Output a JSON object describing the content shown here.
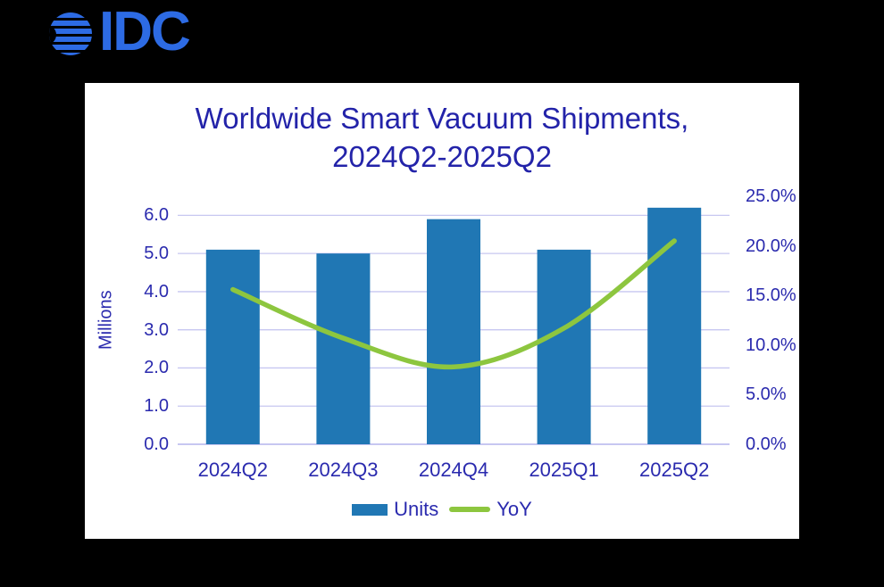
{
  "logo": {
    "text": "IDC"
  },
  "title": {
    "line1": "Worldwide Smart Vacuum Shipments,",
    "line2": "2024Q2-2025Q2"
  },
  "colors": {
    "background": "#000000",
    "panel": "#FFFFFF",
    "logo_blue": "#2D6BE4",
    "bar_blue": "#2077B4",
    "line_green": "#8DC63F",
    "text_navy": "#2A2AAE",
    "title_navy": "#2323A9",
    "gridline": "#C7C7F1"
  },
  "chart_data": {
    "type": "bar",
    "subtype": "combo bar + line, dual axis",
    "title": "Worldwide Smart Vacuum Shipments, 2024Q2-2025Q2",
    "categories": [
      "2024Q2",
      "2024Q3",
      "2024Q4",
      "2025Q1",
      "2025Q2"
    ],
    "series": [
      {
        "name": "Units",
        "type": "bar",
        "axis": "left",
        "values": [
          5.1,
          5.0,
          5.9,
          5.1,
          6.2
        ]
      },
      {
        "name": "YoY",
        "type": "line",
        "axis": "right",
        "values": [
          15.6,
          10.7,
          7.8,
          11.7,
          20.5
        ]
      }
    ],
    "left_axis": {
      "label": "Millions",
      "min": 0,
      "max": 6.5,
      "tick_step": 1.0,
      "tick_labels": [
        "0.0",
        "1.0",
        "2.0",
        "3.0",
        "4.0",
        "5.0",
        "6.0"
      ]
    },
    "right_axis": {
      "unit": "%",
      "min": 0,
      "max": 25,
      "tick_step": 5,
      "tick_labels": [
        "0.0%",
        "5.0%",
        "10.0%",
        "15.0%",
        "20.0%",
        "25.0%"
      ]
    },
    "grid": true,
    "legend_position": "bottom"
  }
}
